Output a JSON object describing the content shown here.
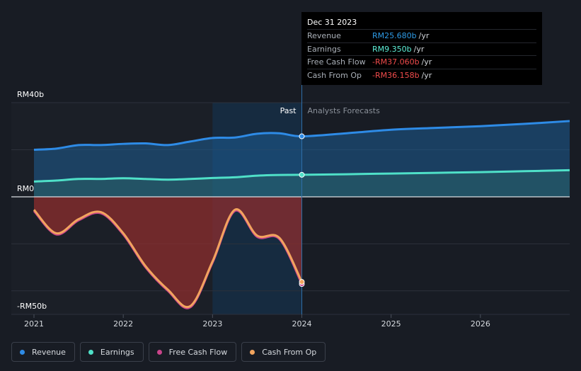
{
  "tooltip": {
    "date": "Dec 31 2023",
    "rows": [
      {
        "label": "Revenue",
        "value": "RM25.680b",
        "unit": "/yr",
        "color": "#2e9be6"
      },
      {
        "label": "Earnings",
        "value": "RM9.350b",
        "unit": "/yr",
        "color": "#5ef0d8"
      },
      {
        "label": "Free Cash Flow",
        "value": "-RM37.060b",
        "unit": "/yr",
        "color": "#f04b4b"
      },
      {
        "label": "Cash From Op",
        "value": "-RM36.158b",
        "unit": "/yr",
        "color": "#f04b4b"
      }
    ]
  },
  "labels": {
    "past": "Past",
    "forecast": "Analysts Forecasts"
  },
  "legend": [
    {
      "label": "Revenue",
      "color": "#2e8be6"
    },
    {
      "label": "Earnings",
      "color": "#4fe0c8"
    },
    {
      "label": "Free Cash Flow",
      "color": "#c9448a"
    },
    {
      "label": "Cash From Op",
      "color": "#f2a45e"
    }
  ],
  "chart_data": {
    "type": "line",
    "yticks": [
      "RM40b",
      "RM0",
      "-RM50b"
    ],
    "xticks": [
      "2021",
      "2022",
      "2023",
      "2024",
      "2025",
      "2026"
    ],
    "ylim": [
      -50,
      40
    ],
    "xlim": [
      2021,
      2027
    ],
    "series": [
      {
        "name": "Revenue",
        "color": "#2e8be6",
        "x": [
          2021.0,
          2021.25,
          2021.5,
          2021.75,
          2022.0,
          2022.25,
          2022.5,
          2022.75,
          2023.0,
          2023.25,
          2023.5,
          2023.75,
          2024.0,
          2024.5,
          2025.0,
          2025.5,
          2026.0,
          2026.5,
          2027.0
        ],
        "y": [
          20.0,
          20.5,
          22.0,
          22.0,
          22.5,
          22.7,
          22.0,
          23.5,
          25.0,
          25.2,
          26.8,
          27.0,
          25.7,
          27.0,
          28.5,
          29.3,
          30.0,
          31.0,
          32.2
        ]
      },
      {
        "name": "Earnings",
        "color": "#4fe0c8",
        "x": [
          2021.0,
          2021.25,
          2021.5,
          2021.75,
          2022.0,
          2022.25,
          2022.5,
          2022.75,
          2023.0,
          2023.25,
          2023.5,
          2023.75,
          2024.0,
          2024.5,
          2025.0,
          2025.5,
          2026.0,
          2026.5,
          2027.0
        ],
        "y": [
          6.5,
          6.9,
          7.6,
          7.6,
          7.9,
          7.6,
          7.3,
          7.6,
          8.0,
          8.3,
          9.0,
          9.3,
          9.35,
          9.6,
          9.9,
          10.2,
          10.5,
          10.9,
          11.3
        ]
      },
      {
        "name": "Free Cash Flow",
        "color": "#c9448a",
        "x": [
          2021.0,
          2021.25,
          2021.5,
          2021.75,
          2022.0,
          2022.25,
          2022.5,
          2022.75,
          2023.0,
          2023.25,
          2023.5,
          2023.75,
          2024.0
        ],
        "y": [
          -6.0,
          -16.0,
          -10.0,
          -7.0,
          -16.0,
          -30.0,
          -40.0,
          -47.0,
          -28.0,
          -6.0,
          -17.0,
          -18.0,
          -37.1
        ]
      },
      {
        "name": "Cash From Op",
        "color": "#f2a45e",
        "x": [
          2021.0,
          2021.25,
          2021.5,
          2021.75,
          2022.0,
          2022.25,
          2022.5,
          2022.75,
          2023.0,
          2023.25,
          2023.5,
          2023.75,
          2024.0
        ],
        "y": [
          -5.5,
          -15.5,
          -9.5,
          -6.5,
          -15.5,
          -29.5,
          -39.5,
          -46.5,
          -27.5,
          -5.5,
          -16.5,
          -17.5,
          -36.2
        ]
      }
    ]
  }
}
